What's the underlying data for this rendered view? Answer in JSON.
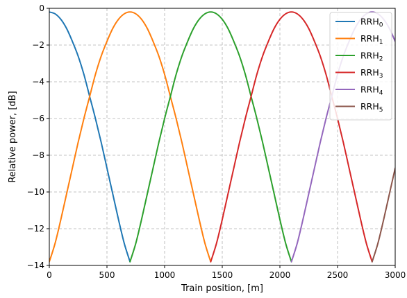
{
  "chart_data": {
    "type": "line",
    "title": "",
    "xlabel": "Train position, [m]",
    "ylabel": "Relative power, [dB]",
    "xlim": [
      0,
      3000
    ],
    "ylim": [
      -14,
      0
    ],
    "xticks": [
      0,
      500,
      1000,
      1500,
      2000,
      2500,
      3000
    ],
    "yticks": [
      0,
      -2,
      -4,
      -6,
      -8,
      -10,
      -12,
      -14
    ],
    "grid": true,
    "legend_position": "top-right",
    "series": [
      {
        "name": "RRH",
        "subscript": "0",
        "color": "#1f77b4",
        "x": [
          0,
          50,
          100,
          150,
          200,
          250,
          300,
          350,
          400,
          450,
          500,
          550,
          600,
          650,
          700
        ],
        "y": [
          -0.2,
          -0.3,
          -0.6,
          -1.1,
          -1.8,
          -2.6,
          -3.6,
          -4.8,
          -6.0,
          -7.3,
          -8.7,
          -10.1,
          -11.5,
          -12.8,
          -13.8
        ]
      },
      {
        "name": "RRH",
        "subscript": "1",
        "color": "#ff7f0e",
        "x": [
          0,
          50,
          100,
          150,
          200,
          250,
          300,
          350,
          400,
          450,
          500,
          550,
          600,
          650,
          700,
          750,
          800,
          850,
          900,
          950,
          1000,
          1050,
          1100,
          1150,
          1200,
          1250,
          1300,
          1350,
          1400
        ],
        "y": [
          -13.8,
          -12.8,
          -11.5,
          -10.1,
          -8.7,
          -7.3,
          -6.0,
          -4.8,
          -3.6,
          -2.6,
          -1.8,
          -1.1,
          -0.6,
          -0.3,
          -0.2,
          -0.3,
          -0.6,
          -1.1,
          -1.8,
          -2.6,
          -3.6,
          -4.8,
          -6.0,
          -7.3,
          -8.7,
          -10.1,
          -11.5,
          -12.8,
          -13.8
        ]
      },
      {
        "name": "RRH",
        "subscript": "2",
        "color": "#2ca02c",
        "x": [
          700,
          750,
          800,
          850,
          900,
          950,
          1000,
          1050,
          1100,
          1150,
          1200,
          1250,
          1300,
          1350,
          1400,
          1450,
          1500,
          1550,
          1600,
          1650,
          1700,
          1750,
          1800,
          1850,
          1900,
          1950,
          2000,
          2050,
          2100
        ],
        "y": [
          -13.8,
          -12.8,
          -11.5,
          -10.1,
          -8.7,
          -7.3,
          -6.0,
          -4.8,
          -3.6,
          -2.6,
          -1.8,
          -1.1,
          -0.6,
          -0.3,
          -0.2,
          -0.3,
          -0.6,
          -1.1,
          -1.8,
          -2.6,
          -3.6,
          -4.8,
          -6.0,
          -7.3,
          -8.7,
          -10.1,
          -11.5,
          -12.8,
          -13.8
        ]
      },
      {
        "name": "RRH",
        "subscript": "3",
        "color": "#d62728",
        "x": [
          1400,
          1450,
          1500,
          1550,
          1600,
          1650,
          1700,
          1750,
          1800,
          1850,
          1900,
          1950,
          2000,
          2050,
          2100,
          2150,
          2200,
          2250,
          2300,
          2350,
          2400,
          2450,
          2500,
          2550,
          2600,
          2650,
          2700,
          2750,
          2800
        ],
        "y": [
          -13.8,
          -12.8,
          -11.5,
          -10.1,
          -8.7,
          -7.3,
          -6.0,
          -4.8,
          -3.6,
          -2.6,
          -1.8,
          -1.1,
          -0.6,
          -0.3,
          -0.2,
          -0.3,
          -0.6,
          -1.1,
          -1.8,
          -2.6,
          -3.6,
          -4.8,
          -6.0,
          -7.3,
          -8.7,
          -10.1,
          -11.5,
          -12.8,
          -13.8
        ]
      },
      {
        "name": "RRH",
        "subscript": "4",
        "color": "#9467bd",
        "x": [
          2100,
          2150,
          2200,
          2250,
          2300,
          2350,
          2400,
          2450,
          2500,
          2550,
          2600,
          2650,
          2700,
          2750,
          2800,
          2850,
          2900,
          2950,
          3000
        ],
        "y": [
          -13.8,
          -12.8,
          -11.5,
          -10.1,
          -8.7,
          -7.3,
          -6.0,
          -4.8,
          -3.6,
          -2.6,
          -1.8,
          -1.1,
          -0.6,
          -0.3,
          -0.2,
          -0.3,
          -0.6,
          -1.1,
          -1.8
        ]
      },
      {
        "name": "RRH",
        "subscript": "5",
        "color": "#8c564b",
        "x": [
          2800,
          2850,
          2900,
          2950,
          3000
        ],
        "y": [
          -13.8,
          -12.8,
          -11.5,
          -10.1,
          -8.7
        ]
      }
    ]
  }
}
